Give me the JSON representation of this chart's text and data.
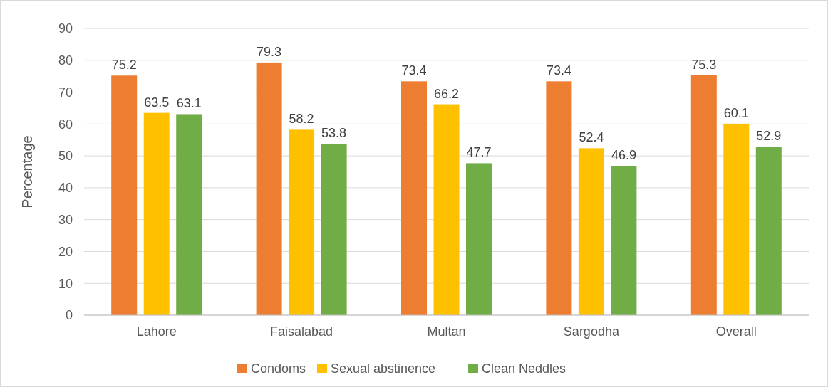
{
  "chart_data": {
    "type": "bar",
    "ylabel": "Percentage",
    "categories": [
      "Lahore",
      "Faisalabad",
      "Multan",
      "Sargodha",
      "Overall"
    ],
    "series": [
      {
        "name": "Condoms",
        "color": "#ed7d31",
        "values": [
          75.2,
          79.3,
          73.4,
          73.4,
          75.3
        ]
      },
      {
        "name": "Sexual abstinence",
        "color": "#ffc000",
        "values": [
          63.5,
          58.2,
          66.2,
          52.4,
          60.1
        ]
      },
      {
        "name": "Clean Neddles",
        "color": "#70ad47",
        "values": [
          63.1,
          53.8,
          47.7,
          46.9,
          52.9
        ]
      }
    ],
    "ylim": [
      0,
      90
    ],
    "yticks": [
      0,
      10,
      20,
      30,
      40,
      50,
      60,
      70,
      80,
      90
    ],
    "grid": "y",
    "legend": "bottom",
    "data_labels": true
  }
}
